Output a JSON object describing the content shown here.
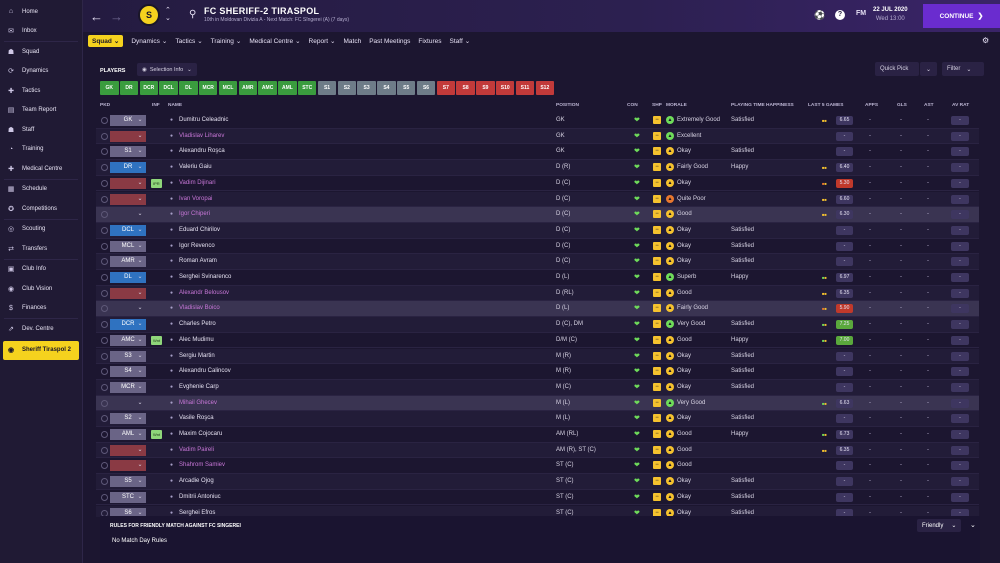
{
  "sidebar": {
    "items": [
      {
        "label": "Home",
        "icon": "home-icon",
        "glyph": "⌂"
      },
      {
        "label": "Inbox",
        "icon": "inbox-icon",
        "glyph": "✉"
      },
      {
        "label": "Squad",
        "icon": "squad-icon",
        "glyph": "☗"
      },
      {
        "label": "Dynamics",
        "icon": "dynamics-icon",
        "glyph": "⟳"
      },
      {
        "label": "Tactics",
        "icon": "tactics-icon",
        "glyph": "✚"
      },
      {
        "label": "Team Report",
        "icon": "report-icon",
        "glyph": "▤"
      },
      {
        "label": "Staff",
        "icon": "staff-icon",
        "glyph": "☗"
      },
      {
        "label": "Training",
        "icon": "training-icon",
        "glyph": "◔"
      },
      {
        "label": "Medical Centre",
        "icon": "medical-icon",
        "glyph": "✚"
      },
      {
        "label": "Schedule",
        "icon": "schedule-icon",
        "glyph": "▦"
      },
      {
        "label": "Competitions",
        "icon": "competitions-icon",
        "glyph": "✪"
      },
      {
        "label": "Scouting",
        "icon": "scouting-icon",
        "glyph": "◎"
      },
      {
        "label": "Transfers",
        "icon": "transfers-icon",
        "glyph": "⇄"
      },
      {
        "label": "Club Info",
        "icon": "club-info-icon",
        "glyph": "▣"
      },
      {
        "label": "Club Vision",
        "icon": "club-vision-icon",
        "glyph": "◉"
      },
      {
        "label": "Finances",
        "icon": "finances-icon",
        "glyph": "$"
      },
      {
        "label": "Dev. Centre",
        "icon": "dev-centre-icon",
        "glyph": "⇗"
      }
    ],
    "active_club": "Sheriff Tiraspol 2"
  },
  "header": {
    "club_name": "FC SHERIFF-2 TIRASPOL",
    "subtitle": "10th in Moldovan Divizia A - Next Match: FC Sîngerei (A) (7 days)",
    "date": "22 JUL 2020",
    "day": "Wed 13:00",
    "user_initials": "FM",
    "continue_label": "CONTINUE",
    "crest_text": "S"
  },
  "subnav": [
    "Squad",
    "Dynamics",
    "Tactics",
    "Training",
    "Medical Centre",
    "Report",
    "Match",
    "Past Meetings",
    "Fixtures",
    "Staff"
  ],
  "toolbar": {
    "players_label": "PLAYERS",
    "selection_info": "Selection Info",
    "quick_pick": "Quick Pick",
    "filter": "Filter"
  },
  "position_chips": [
    {
      "label": "GK",
      "color": "#3a9c3e"
    },
    {
      "label": "DR",
      "color": "#3a9c3e"
    },
    {
      "label": "DCR",
      "color": "#3a9c3e"
    },
    {
      "label": "DCL",
      "color": "#3a9c3e"
    },
    {
      "label": "DL",
      "color": "#3a9c3e"
    },
    {
      "label": "MCR",
      "color": "#3a9c3e"
    },
    {
      "label": "MCL",
      "color": "#3a9c3e"
    },
    {
      "label": "AMR",
      "color": "#3a9c3e"
    },
    {
      "label": "AMC",
      "color": "#3a9c3e"
    },
    {
      "label": "AML",
      "color": "#3a9c3e"
    },
    {
      "label": "STC",
      "color": "#3a9c3e"
    },
    {
      "label": "S1",
      "color": "#6e7c88"
    },
    {
      "label": "S2",
      "color": "#6e7c88"
    },
    {
      "label": "S3",
      "color": "#6e7c88"
    },
    {
      "label": "S4",
      "color": "#6e7c88"
    },
    {
      "label": "S5",
      "color": "#6e7c88"
    },
    {
      "label": "S6",
      "color": "#6e7c88"
    },
    {
      "label": "S7",
      "color": "#c23a3a"
    },
    {
      "label": "S8",
      "color": "#c23a3a"
    },
    {
      "label": "S9",
      "color": "#c23a3a"
    },
    {
      "label": "S10",
      "color": "#c23a3a"
    },
    {
      "label": "S11",
      "color": "#c23a3a"
    },
    {
      "label": "S12",
      "color": "#c23a3a"
    }
  ],
  "columns": {
    "pkd": "PKD",
    "inf": "INF",
    "name": "NAME",
    "position": "POSITION",
    "con": "CON",
    "shp": "SHP",
    "morale": "MORALE",
    "happiness": "PLAYING TIME HAPPINESS",
    "last5": "LAST 5 GAMES",
    "apps": "APPS",
    "gls": "GLS",
    "ast": "AST",
    "avrat": "AV RAT"
  },
  "players": [
    {
      "pkd": "GK",
      "pkd_color": "#6a6486",
      "inf": "",
      "name": "Dumitru Celeadnic",
      "loan": false,
      "position": "GK",
      "shp": "med",
      "morale": "Extremely Good",
      "morale_color": "#6fdc5a",
      "happy": "Satisfied",
      "form": "yellow",
      "rating": "6.65",
      "rating_color": "#3e3660",
      "apps": "-",
      "gls": "-",
      "ast": "-",
      "avrat": "-",
      "row": ""
    },
    {
      "pkd": "",
      "pkd_color": "#8a3a44",
      "inf": "",
      "name": "Vladislav Liharev",
      "loan": true,
      "position": "GK",
      "shp": "med",
      "morale": "Excellent",
      "morale_color": "#6fdc5a",
      "happy": "",
      "form": "",
      "rating": "-",
      "rating_color": "#3e3660",
      "apps": "-",
      "gls": "-",
      "ast": "-",
      "avrat": "-",
      "row": "alt"
    },
    {
      "pkd": "S1",
      "pkd_color": "#6a6486",
      "inf": "",
      "name": "Alexandru Roşca",
      "loan": false,
      "position": "GK",
      "shp": "",
      "morale": "Okay",
      "morale_color": "#f5c22e",
      "happy": "Satisfied",
      "form": "",
      "rating": "-",
      "rating_color": "#3e3660",
      "apps": "-",
      "gls": "-",
      "ast": "-",
      "avrat": "-",
      "row": ""
    },
    {
      "pkd": "DR",
      "pkd_color": "#2f72c0",
      "inf": "",
      "name": "Valeriu Gaiu",
      "loan": false,
      "position": "D (R)",
      "shp": "med",
      "morale": "Fairly Good",
      "morale_color": "#f5c22e",
      "happy": "Happy",
      "form": "yellow",
      "rating": "6.40",
      "rating_color": "#3e3660",
      "apps": "-",
      "gls": "-",
      "ast": "-",
      "avrat": "-",
      "row": "alt"
    },
    {
      "pkd": "",
      "pkd_color": "#8a3a44",
      "inf": "IPR",
      "name": "Vadim Dijinari",
      "loan": true,
      "position": "D (C)",
      "shp": "med",
      "morale": "Okay",
      "morale_color": "#f5c22e",
      "happy": "",
      "form": "orange",
      "rating": "5.30",
      "rating_color": "#c0392b",
      "apps": "-",
      "gls": "-",
      "ast": "-",
      "avrat": "-",
      "row": ""
    },
    {
      "pkd": "",
      "pkd_color": "#8a3a44",
      "inf": "",
      "name": "Ivan Voropai",
      "loan": true,
      "position": "D (C)",
      "shp": "med",
      "morale": "Quite Poor",
      "morale_color": "#e8772e",
      "happy": "",
      "form": "yellow",
      "rating": "6.60",
      "rating_color": "#3e3660",
      "apps": "-",
      "gls": "-",
      "ast": "-",
      "avrat": "-",
      "row": "alt"
    },
    {
      "pkd": "",
      "pkd_color": "#3a3452",
      "inf": "",
      "name": "Igor Chiperi",
      "loan": true,
      "position": "D (C)",
      "shp": "med",
      "morale": "Good",
      "morale_color": "#f5c22e",
      "happy": "",
      "form": "yellow",
      "rating": "6.30",
      "rating_color": "#3e3660",
      "apps": "-",
      "gls": "-",
      "ast": "-",
      "avrat": "-",
      "row": "hl"
    },
    {
      "pkd": "DCL",
      "pkd_color": "#2f72c0",
      "inf": "",
      "name": "Eduard Chirilov",
      "loan": false,
      "position": "D (C)",
      "shp": "",
      "morale": "Okay",
      "morale_color": "#f5c22e",
      "happy": "Satisfied",
      "form": "",
      "rating": "-",
      "rating_color": "#3e3660",
      "apps": "-",
      "gls": "-",
      "ast": "-",
      "avrat": "-",
      "row": "alt"
    },
    {
      "pkd": "MCL",
      "pkd_color": "#6a6486",
      "inf": "",
      "name": "Igor Revenco",
      "loan": false,
      "position": "D (C)",
      "shp": "",
      "morale": "Okay",
      "morale_color": "#f5c22e",
      "happy": "Satisfied",
      "form": "",
      "rating": "-",
      "rating_color": "#3e3660",
      "apps": "-",
      "gls": "-",
      "ast": "-",
      "avrat": "-",
      "row": ""
    },
    {
      "pkd": "AMR",
      "pkd_color": "#6a6486",
      "inf": "",
      "name": "Roman Avram",
      "loan": false,
      "position": "D (C)",
      "shp": "",
      "morale": "Okay",
      "morale_color": "#f5c22e",
      "happy": "Satisfied",
      "form": "",
      "rating": "-",
      "rating_color": "#3e3660",
      "apps": "-",
      "gls": "-",
      "ast": "-",
      "avrat": "-",
      "row": "alt"
    },
    {
      "pkd": "DL",
      "pkd_color": "#2f72c0",
      "inf": "",
      "name": "Serghei Svinarenco",
      "loan": false,
      "position": "D (L)",
      "shp": "med",
      "morale": "Superb",
      "morale_color": "#6fdc5a",
      "happy": "Happy",
      "form": "green",
      "rating": "6.97",
      "rating_color": "#3e3660",
      "apps": "-",
      "gls": "-",
      "ast": "-",
      "avrat": "-",
      "row": ""
    },
    {
      "pkd": "",
      "pkd_color": "#8a3a44",
      "inf": "",
      "name": "Alexandr Belousov",
      "loan": true,
      "position": "D (RL)",
      "shp": "med",
      "morale": "Good",
      "morale_color": "#f5c22e",
      "happy": "",
      "form": "yellow",
      "rating": "6.35",
      "rating_color": "#3e3660",
      "apps": "-",
      "gls": "-",
      "ast": "-",
      "avrat": "-",
      "row": "alt"
    },
    {
      "pkd": "",
      "pkd_color": "#3a3452",
      "inf": "",
      "name": "Vladislav Boico",
      "loan": true,
      "position": "D (L)",
      "shp": "med",
      "morale": "Fairly Good",
      "morale_color": "#f5c22e",
      "happy": "",
      "form": "orange",
      "rating": "5.90",
      "rating_color": "#c0392b",
      "apps": "-",
      "gls": "-",
      "ast": "-",
      "avrat": "-",
      "row": "hl"
    },
    {
      "pkd": "DCR",
      "pkd_color": "#2f72c0",
      "inf": "",
      "name": "Charles Petro",
      "loan": false,
      "position": "D (C), DM",
      "shp": "med",
      "morale": "Very Good",
      "morale_color": "#6fdc5a",
      "happy": "Satisfied",
      "form": "green",
      "rating": "7.25",
      "rating_color": "#5aa83c",
      "apps": "-",
      "gls": "-",
      "ast": "-",
      "avrat": "-",
      "row": "alt"
    },
    {
      "pkd": "AMC",
      "pkd_color": "#6a6486",
      "inf": "Wnt",
      "name": "Alec Mudimu",
      "loan": false,
      "position": "D/M (C)",
      "shp": "med",
      "morale": "Good",
      "morale_color": "#f5c22e",
      "happy": "Happy",
      "form": "green",
      "rating": "7.00",
      "rating_color": "#5aa83c",
      "apps": "-",
      "gls": "-",
      "ast": "-",
      "avrat": "-",
      "row": ""
    },
    {
      "pkd": "S3",
      "pkd_color": "#6a6486",
      "inf": "",
      "name": "Sergiu Martin",
      "loan": false,
      "position": "M (R)",
      "shp": "",
      "morale": "Okay",
      "morale_color": "#f5c22e",
      "happy": "Satisfied",
      "form": "",
      "rating": "-",
      "rating_color": "#3e3660",
      "apps": "-",
      "gls": "-",
      "ast": "-",
      "avrat": "-",
      "row": "alt"
    },
    {
      "pkd": "S4",
      "pkd_color": "#6a6486",
      "inf": "",
      "name": "Alexandru Calincov",
      "loan": false,
      "position": "M (R)",
      "shp": "",
      "morale": "Okay",
      "morale_color": "#f5c22e",
      "happy": "Satisfied",
      "form": "",
      "rating": "-",
      "rating_color": "#3e3660",
      "apps": "-",
      "gls": "-",
      "ast": "-",
      "avrat": "-",
      "row": ""
    },
    {
      "pkd": "MCR",
      "pkd_color": "#6a6486",
      "inf": "",
      "name": "Evghenie Carp",
      "loan": false,
      "position": "M (C)",
      "shp": "",
      "morale": "Okay",
      "morale_color": "#f5c22e",
      "happy": "Satisfied",
      "form": "",
      "rating": "-",
      "rating_color": "#3e3660",
      "apps": "-",
      "gls": "-",
      "ast": "-",
      "avrat": "-",
      "row": "alt"
    },
    {
      "pkd": "",
      "pkd_color": "#3a3452",
      "inf": "",
      "name": "Mihail Ghecev",
      "loan": true,
      "position": "M (L)",
      "shp": "med",
      "morale": "Very Good",
      "morale_color": "#6fdc5a",
      "happy": "",
      "form": "green",
      "rating": "6.63",
      "rating_color": "#3e3660",
      "apps": "-",
      "gls": "-",
      "ast": "-",
      "avrat": "-",
      "row": "hl"
    },
    {
      "pkd": "S2",
      "pkd_color": "#6a6486",
      "inf": "",
      "name": "Vasile Roşca",
      "loan": false,
      "position": "M (L)",
      "shp": "",
      "morale": "Okay",
      "morale_color": "#f5c22e",
      "happy": "Satisfied",
      "form": "",
      "rating": "-",
      "rating_color": "#3e3660",
      "apps": "-",
      "gls": "-",
      "ast": "-",
      "avrat": "-",
      "row": "alt"
    },
    {
      "pkd": "AML",
      "pkd_color": "#6a6486",
      "inf": "Wnt",
      "name": "Maxim Cojocaru",
      "loan": false,
      "position": "AM (RL)",
      "shp": "med",
      "morale": "Good",
      "morale_color": "#f5c22e",
      "happy": "Happy",
      "form": "green",
      "rating": "6.73",
      "rating_color": "#3e3660",
      "apps": "-",
      "gls": "-",
      "ast": "-",
      "avrat": "-",
      "row": ""
    },
    {
      "pkd": "",
      "pkd_color": "#8a3a44",
      "inf": "",
      "name": "Vadim Paireli",
      "loan": true,
      "position": "AM (R), ST (C)",
      "shp": "med",
      "morale": "Good",
      "morale_color": "#f5c22e",
      "happy": "",
      "form": "yellow",
      "rating": "6.35",
      "rating_color": "#3e3660",
      "apps": "-",
      "gls": "-",
      "ast": "-",
      "avrat": "-",
      "row": "alt"
    },
    {
      "pkd": "",
      "pkd_color": "#8a3a44",
      "inf": "",
      "name": "Shahrom Samiev",
      "loan": true,
      "position": "ST (C)",
      "shp": "med",
      "morale": "Good",
      "morale_color": "#f5c22e",
      "happy": "",
      "form": "",
      "rating": "-",
      "rating_color": "#3e3660",
      "apps": "-",
      "gls": "-",
      "ast": "-",
      "avrat": "-",
      "row": ""
    },
    {
      "pkd": "S5",
      "pkd_color": "#6a6486",
      "inf": "",
      "name": "Arcadie Ojog",
      "loan": false,
      "position": "ST (C)",
      "shp": "",
      "morale": "Okay",
      "morale_color": "#f5c22e",
      "happy": "Satisfied",
      "form": "",
      "rating": "-",
      "rating_color": "#3e3660",
      "apps": "-",
      "gls": "-",
      "ast": "-",
      "avrat": "-",
      "row": "alt"
    },
    {
      "pkd": "STC",
      "pkd_color": "#6a6486",
      "inf": "",
      "name": "Dmitrii Antoniuc",
      "loan": false,
      "position": "ST (C)",
      "shp": "",
      "morale": "Okay",
      "morale_color": "#f5c22e",
      "happy": "Satisfied",
      "form": "",
      "rating": "-",
      "rating_color": "#3e3660",
      "apps": "-",
      "gls": "-",
      "ast": "-",
      "avrat": "-",
      "row": ""
    },
    {
      "pkd": "S6",
      "pkd_color": "#6a6486",
      "inf": "",
      "name": "Serghei Efros",
      "loan": false,
      "position": "ST (C)",
      "shp": "",
      "morale": "Okay",
      "morale_color": "#f5c22e",
      "happy": "Satisfied",
      "form": "",
      "rating": "-",
      "rating_color": "#3e3660",
      "apps": "-",
      "gls": "-",
      "ast": "-",
      "avrat": "-",
      "row": "alt"
    }
  ],
  "rules": {
    "title": "RULES FOR FRIENDLY MATCH AGAINST FC SINGEREI",
    "text": "No Match Day Rules",
    "friendly": "Friendly"
  }
}
